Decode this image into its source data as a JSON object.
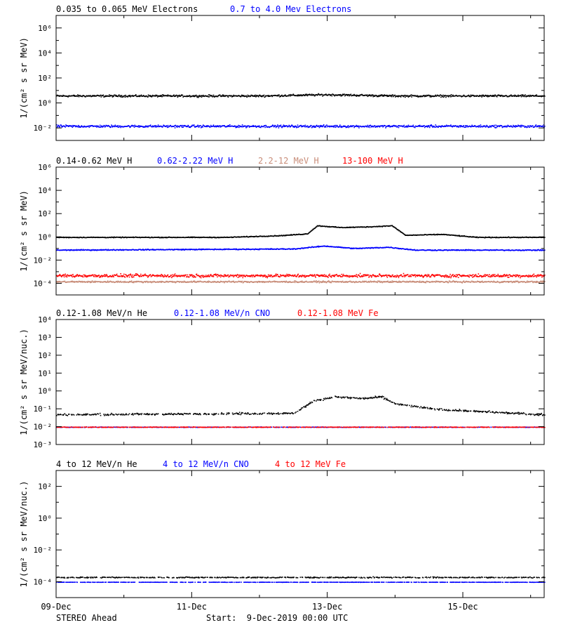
{
  "spacecraft_label": "STEREO Ahead",
  "start_label": "Start:  9-Dec-2019 00:00 UTC",
  "x_ticks": [
    {
      "day": 0,
      "label": "09-Dec"
    },
    {
      "day": 2,
      "label": "11-Dec"
    },
    {
      "day": 4,
      "label": "13-Dec"
    },
    {
      "day": 6,
      "label": "15-Dec"
    }
  ],
  "x_range_days": [
    0,
    7.2
  ],
  "colors": {
    "black": "#000000",
    "blue": "#0000ff",
    "tan": "#c88c78",
    "red": "#ff0000"
  },
  "chart_data": [
    {
      "type": "scatter",
      "ylabel": "1/(cm² s sr MeV)",
      "y_scale": "log",
      "ylim_log10": [
        -3,
        7
      ],
      "y_tick_labels": [
        "10⁻²",
        "10⁰",
        "10²",
        "10⁴",
        "10⁶"
      ],
      "y_tick_exps": [
        -2,
        0,
        2,
        4,
        6
      ],
      "series": [
        {
          "name": "0.035 to 0.065 MeV Electrons",
          "color": "#000000",
          "base_log10": 0.6,
          "scatter": 0.12,
          "points": [
            [
              0,
              4
            ],
            [
              1,
              4
            ],
            [
              2,
              4
            ],
            [
              3,
              4
            ],
            [
              4,
              5
            ],
            [
              4.5,
              4.5
            ],
            [
              5,
              4
            ],
            [
              6,
              4
            ],
            [
              7.2,
              4
            ]
          ]
        },
        {
          "name": "0.7 to 4.0 Mev Electrons",
          "color": "#0000ff",
          "base_log10": -1.85,
          "scatter": 0.14,
          "points": [
            [
              0,
              0.015
            ],
            [
              7.2,
              0.015
            ]
          ]
        }
      ]
    },
    {
      "type": "scatter",
      "ylabel": "1/(cm² s sr MeV)",
      "y_scale": "log",
      "ylim_log10": [
        -5,
        6
      ],
      "y_tick_labels": [
        "10⁻⁴",
        "10⁻²",
        "10⁰",
        "10²",
        "10⁴",
        "10⁶"
      ],
      "y_tick_exps": [
        -4,
        -2,
        0,
        2,
        4,
        6
      ],
      "series": [
        {
          "name": "0.14-0.62 MeV H",
          "color": "#000000",
          "base_log10": 0,
          "scatter": 0.05,
          "points": [
            [
              0,
              1
            ],
            [
              2.5,
              1
            ],
            [
              3.3,
              1.4
            ],
            [
              3.7,
              2
            ],
            [
              3.85,
              10
            ],
            [
              4.2,
              7
            ],
            [
              4.6,
              8
            ],
            [
              4.95,
              10
            ],
            [
              5.15,
              1.5
            ],
            [
              5.7,
              1.8
            ],
            [
              6.2,
              1
            ],
            [
              7.2,
              1
            ]
          ]
        },
        {
          "name": "0.62-2.22 MeV H",
          "color": "#0000ff",
          "base_log10": -1,
          "scatter": 0.06,
          "points": [
            [
              0,
              0.08
            ],
            [
              3.5,
              0.1
            ],
            [
              3.95,
              0.18
            ],
            [
              4.4,
              0.11
            ],
            [
              4.9,
              0.14
            ],
            [
              5.3,
              0.08
            ],
            [
              7.2,
              0.08
            ]
          ]
        },
        {
          "name": "2.2-12 MeV H",
          "color": "#c88c78",
          "base_log10": -3.85,
          "scatter": 0.1,
          "points": [
            [
              0,
              0.00015
            ],
            [
              7.2,
              0.00015
            ]
          ]
        },
        {
          "name": "13-100 MeV H",
          "color": "#ff0000",
          "base_log10": -3.3,
          "scatter": 0.2,
          "points": [
            [
              0,
              0.0005
            ],
            [
              7.2,
              0.0005
            ]
          ]
        }
      ]
    },
    {
      "type": "scatter",
      "ylabel": "1/(cm² s sr MeV/nuc.)",
      "y_scale": "log",
      "ylim_log10": [
        -3,
        4
      ],
      "y_tick_labels": [
        "10⁻³",
        "10⁻²",
        "10⁻¹",
        "10⁰",
        "10¹",
        "10²",
        "10³",
        "10⁴"
      ],
      "y_tick_exps": [
        -3,
        -2,
        -1,
        0,
        1,
        2,
        3,
        4
      ],
      "series": [
        {
          "name": "0.12-1.08 MeV/n He",
          "color": "#000000",
          "base_log10": -1.3,
          "scatter": 0.08,
          "points": [
            [
              0,
              0.05
            ],
            [
              3.5,
              0.06
            ],
            [
              3.8,
              0.3
            ],
            [
              4.1,
              0.5
            ],
            [
              4.5,
              0.4
            ],
            [
              4.8,
              0.5
            ],
            [
              5,
              0.2
            ],
            [
              5.6,
              0.1
            ],
            [
              7.2,
              0.05
            ]
          ]
        },
        {
          "name": "0.12-1.08 MeV/n CNO",
          "color": "#0000ff",
          "base_log10": -2,
          "scatter": 0.02,
          "points": [
            [
              0,
              0.01
            ],
            [
              7.2,
              0.01
            ]
          ]
        },
        {
          "name": "0.12-1.08 MeV Fe",
          "color": "#ff0000",
          "base_log10": -2,
          "scatter": 0.02,
          "points": [
            [
              0,
              0.01
            ],
            [
              7.2,
              0.01
            ]
          ]
        }
      ]
    },
    {
      "type": "scatter",
      "ylabel": "1/(cm² s sr MeV/nuc.)",
      "y_scale": "log",
      "ylim_log10": [
        -5,
        3
      ],
      "y_tick_labels": [
        "10⁻⁴",
        "10⁻²",
        "10⁰",
        "10²"
      ],
      "y_tick_exps": [
        -4,
        -2,
        0,
        2
      ],
      "series": [
        {
          "name": "4 to 12 MeV/n He",
          "color": "#000000",
          "base_log10": -3.7,
          "scatter": 0.05,
          "points": [
            [
              0,
              0.0002
            ],
            [
              7.2,
              0.0002
            ]
          ]
        },
        {
          "name": "4 to 12 MeV/n CNO",
          "color": "#0000ff",
          "base_log10": -4,
          "scatter": 0.01,
          "points": [
            [
              0,
              0.0001
            ],
            [
              7.2,
              0.0001
            ]
          ]
        },
        {
          "name": "4 to 12 MeV Fe",
          "color": "#ff0000",
          "base_log10": -4.8,
          "scatter": 0.01,
          "points": []
        }
      ]
    }
  ]
}
